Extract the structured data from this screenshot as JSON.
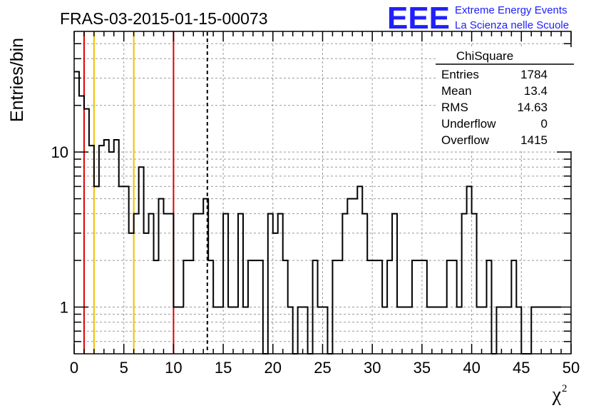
{
  "chart_data": {
    "type": "histogram",
    "title": "FRAS-03-2015-01-15-00073",
    "xlabel": "χ",
    "xlabel_sup": "2",
    "ylabel": "Entries/bin",
    "xlim": [
      0,
      50
    ],
    "ylim": [
      0.5,
      60
    ],
    "y_scale": "log",
    "grid": true,
    "bin_width": 0.5,
    "x_ticks": [
      "0",
      "5",
      "10",
      "15",
      "20",
      "25",
      "30",
      "35",
      "40",
      "45",
      "50"
    ],
    "y_ticks": [
      "1",
      "10"
    ],
    "values": [
      33,
      23,
      19,
      11,
      6,
      11,
      12,
      10,
      12,
      6,
      6,
      3,
      4,
      8,
      3,
      4,
      2,
      5,
      4,
      4,
      1,
      1,
      2,
      2,
      4,
      4,
      5,
      2,
      1,
      1,
      4,
      1,
      1,
      4,
      1,
      2,
      2,
      2,
      0,
      4,
      3,
      4,
      2,
      1,
      0,
      1,
      1,
      0,
      2,
      1,
      1,
      0,
      2,
      2,
      4,
      5,
      5,
      6,
      4,
      2,
      2,
      2,
      1,
      2,
      4,
      1,
      1,
      1,
      2,
      2,
      2,
      1,
      1,
      1,
      1,
      2,
      2,
      1,
      4,
      6,
      4,
      1,
      1,
      2,
      0,
      1,
      1,
      1,
      2,
      1,
      0,
      0,
      1,
      1,
      1,
      1,
      1,
      1
    ],
    "vertical_lines": [
      {
        "x": 1,
        "color": "#e00000",
        "style": "solid"
      },
      {
        "x": 2,
        "color": "#f0c000",
        "style": "solid"
      },
      {
        "x": 6,
        "color": "#f0c000",
        "style": "solid"
      },
      {
        "x": 10,
        "color": "#e00000",
        "style": "solid"
      },
      {
        "x": 13.4,
        "color": "#000000",
        "style": "dashed"
      }
    ],
    "stats_box": {
      "name": "ChiSquare",
      "rows": [
        {
          "label": "Entries",
          "value": "1784"
        },
        {
          "label": "Mean",
          "value": "13.4"
        },
        {
          "label": "RMS",
          "value": "14.63"
        },
        {
          "label": "Underflow",
          "value": "0"
        },
        {
          "label": "Overflow",
          "value": "1415"
        }
      ]
    }
  },
  "logo": {
    "letters": "EEE",
    "line1": "Extreme Energy Events",
    "line2": "La Scienza nelle Scuole",
    "color": "#2020ff"
  }
}
